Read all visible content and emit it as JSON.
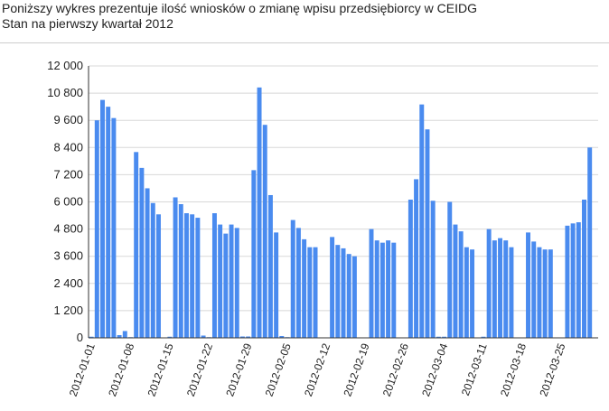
{
  "chart_data": {
    "type": "bar",
    "title": "Poniższy wykres prezentuje ilość wniosków o zmianę wpisu przedsiębiorcy w CEIDG",
    "subtitle": "Stan na pierwszy kwartał 2012",
    "categories": [
      "2012-01-01",
      null,
      null,
      null,
      null,
      null,
      null,
      "2012-01-08",
      null,
      null,
      null,
      null,
      null,
      null,
      "2012-01-15",
      null,
      null,
      null,
      null,
      null,
      null,
      "2012-01-22",
      null,
      null,
      null,
      null,
      null,
      null,
      "2012-01-29",
      null,
      null,
      null,
      null,
      null,
      null,
      "2012-02-05",
      null,
      null,
      null,
      null,
      null,
      null,
      "2012-02-12",
      null,
      null,
      null,
      null,
      null,
      null,
      "2012-02-19",
      null,
      null,
      null,
      null,
      null,
      null,
      "2012-02-26",
      null,
      null,
      null,
      null,
      null,
      null,
      "2012-03-04",
      null,
      null,
      null,
      null,
      null,
      null,
      "2012-03-11",
      null,
      null,
      null,
      null,
      null,
      null,
      "2012-03-18",
      null,
      null,
      null,
      null,
      null,
      null,
      "2012-03-25",
      null,
      null,
      null,
      null,
      null,
      null
    ],
    "values": [
      50,
      9600,
      10500,
      10200,
      9700,
      120,
      300,
      30,
      8200,
      7500,
      6600,
      5950,
      5450,
      0,
      50,
      6200,
      5900,
      5500,
      5450,
      5300,
      100,
      30,
      5500,
      5000,
      4600,
      5000,
      4850,
      60,
      60,
      7400,
      11050,
      9400,
      6300,
      4650,
      80,
      30,
      5200,
      4850,
      4350,
      4000,
      4000,
      0,
      0,
      4450,
      4100,
      3950,
      3700,
      3600,
      0,
      0,
      4800,
      4300,
      4200,
      4300,
      4200,
      0,
      0,
      6100,
      7000,
      10300,
      9200,
      6050,
      50,
      50,
      6000,
      5000,
      4700,
      4000,
      3900,
      0,
      50,
      4800,
      4300,
      4400,
      4300,
      4000,
      0,
      0,
      4650,
      4250,
      4000,
      3900,
      3900,
      0,
      0,
      4950,
      5050,
      5100,
      6100,
      8400,
      0
    ],
    "color": "#4a8bef",
    "ylim": [
      0,
      12000
    ],
    "yticks": [
      0,
      {
        "value": 1200,
        "label": "1 200"
      },
      {
        "value": 2400,
        "label": "2 400"
      },
      {
        "value": 3600,
        "label": "3 600"
      },
      {
        "value": 4800,
        "label": "4 800"
      },
      {
        "value": 6000,
        "label": "6 000"
      },
      {
        "value": 7200,
        "label": "7 200"
      },
      {
        "value": 8400,
        "label": "8 400"
      },
      {
        "value": 9600,
        "label": "9 600"
      },
      {
        "value": 10800,
        "label": "10 800"
      },
      {
        "value": 12000,
        "label": "12 000"
      }
    ],
    "grid": true
  }
}
